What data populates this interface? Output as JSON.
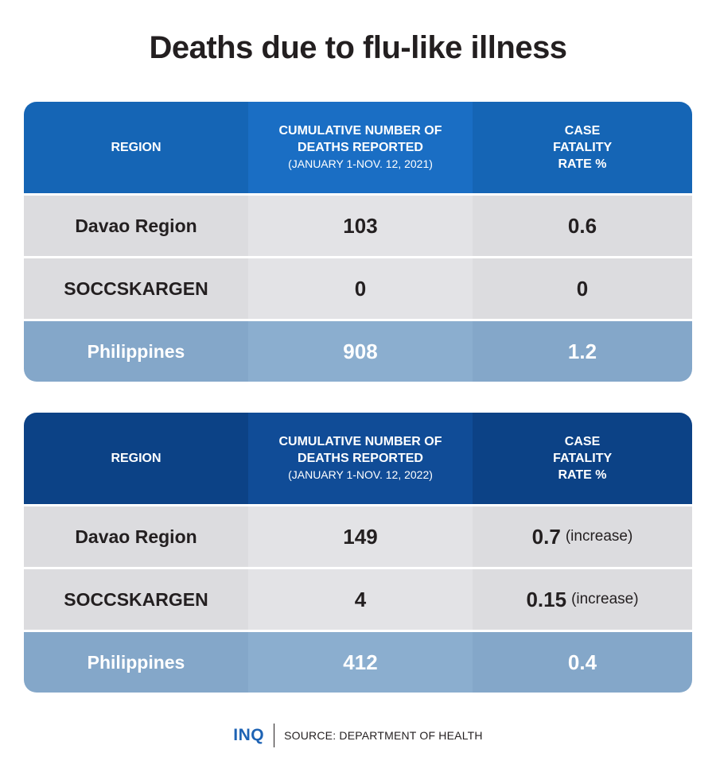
{
  "title": "Deaths due to flu-like illness",
  "chart_data": [
    {
      "type": "table",
      "columns": [
        {
          "label": "REGION",
          "sublabel": ""
        },
        {
          "label": "CUMULATIVE NUMBER OF DEATHS REPORTED",
          "sublabel": "(JANUARY 1-NOV. 12, 2021)"
        },
        {
          "label": "CASE FATALITY RATE %",
          "sublabel": ""
        }
      ],
      "rows": [
        {
          "region": "Davao Region",
          "deaths": "103",
          "rate": "0.6",
          "note": ""
        },
        {
          "region": "SOCCSKARGEN",
          "deaths": "0",
          "rate": "0",
          "note": ""
        },
        {
          "region": "Philippines",
          "deaths": "908",
          "rate": "1.2",
          "note": ""
        }
      ]
    },
    {
      "type": "table",
      "columns": [
        {
          "label": "REGION",
          "sublabel": ""
        },
        {
          "label": "CUMULATIVE NUMBER OF DEATHS REPORTED",
          "sublabel": "(JANUARY 1-NOV. 12, 2022)"
        },
        {
          "label": "CASE FATALITY RATE %",
          "sublabel": ""
        }
      ],
      "rows": [
        {
          "region": "Davao Region",
          "deaths": "149",
          "rate": "0.7",
          "note": "(increase)"
        },
        {
          "region": "SOCCSKARGEN",
          "deaths": "4",
          "rate": "0.15",
          "note": "(increase)"
        },
        {
          "region": "Philippines",
          "deaths": "412",
          "rate": "0.4",
          "note": ""
        }
      ]
    }
  ],
  "footer": {
    "logo": "INQ",
    "source": "SOURCE: DEPARTMENT OF HEALTH"
  },
  "colors": {
    "header_2021": "#1565b5",
    "header_2022": "#0c4286",
    "row_light": "#dcdcdf",
    "row_total": "#84a7c9",
    "logo": "#1e63b4"
  }
}
